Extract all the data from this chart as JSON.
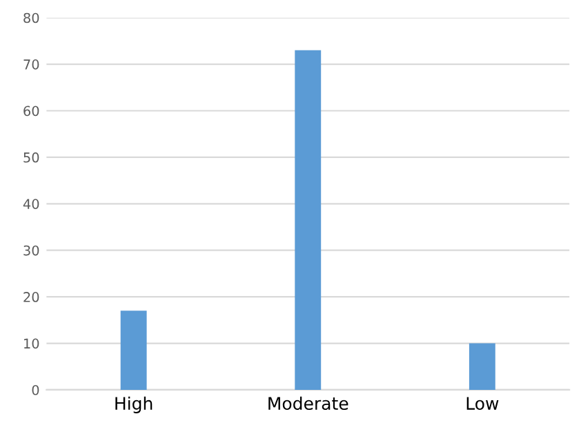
{
  "chart_data": {
    "type": "bar",
    "categories": [
      "High",
      "Moderate",
      "Low"
    ],
    "values": [
      17,
      73,
      10
    ],
    "color": "#5b9bd5",
    "ylim": [
      0,
      80
    ],
    "yticks": [
      0,
      10,
      20,
      30,
      40,
      50,
      60,
      70,
      80
    ],
    "grid": "y"
  }
}
